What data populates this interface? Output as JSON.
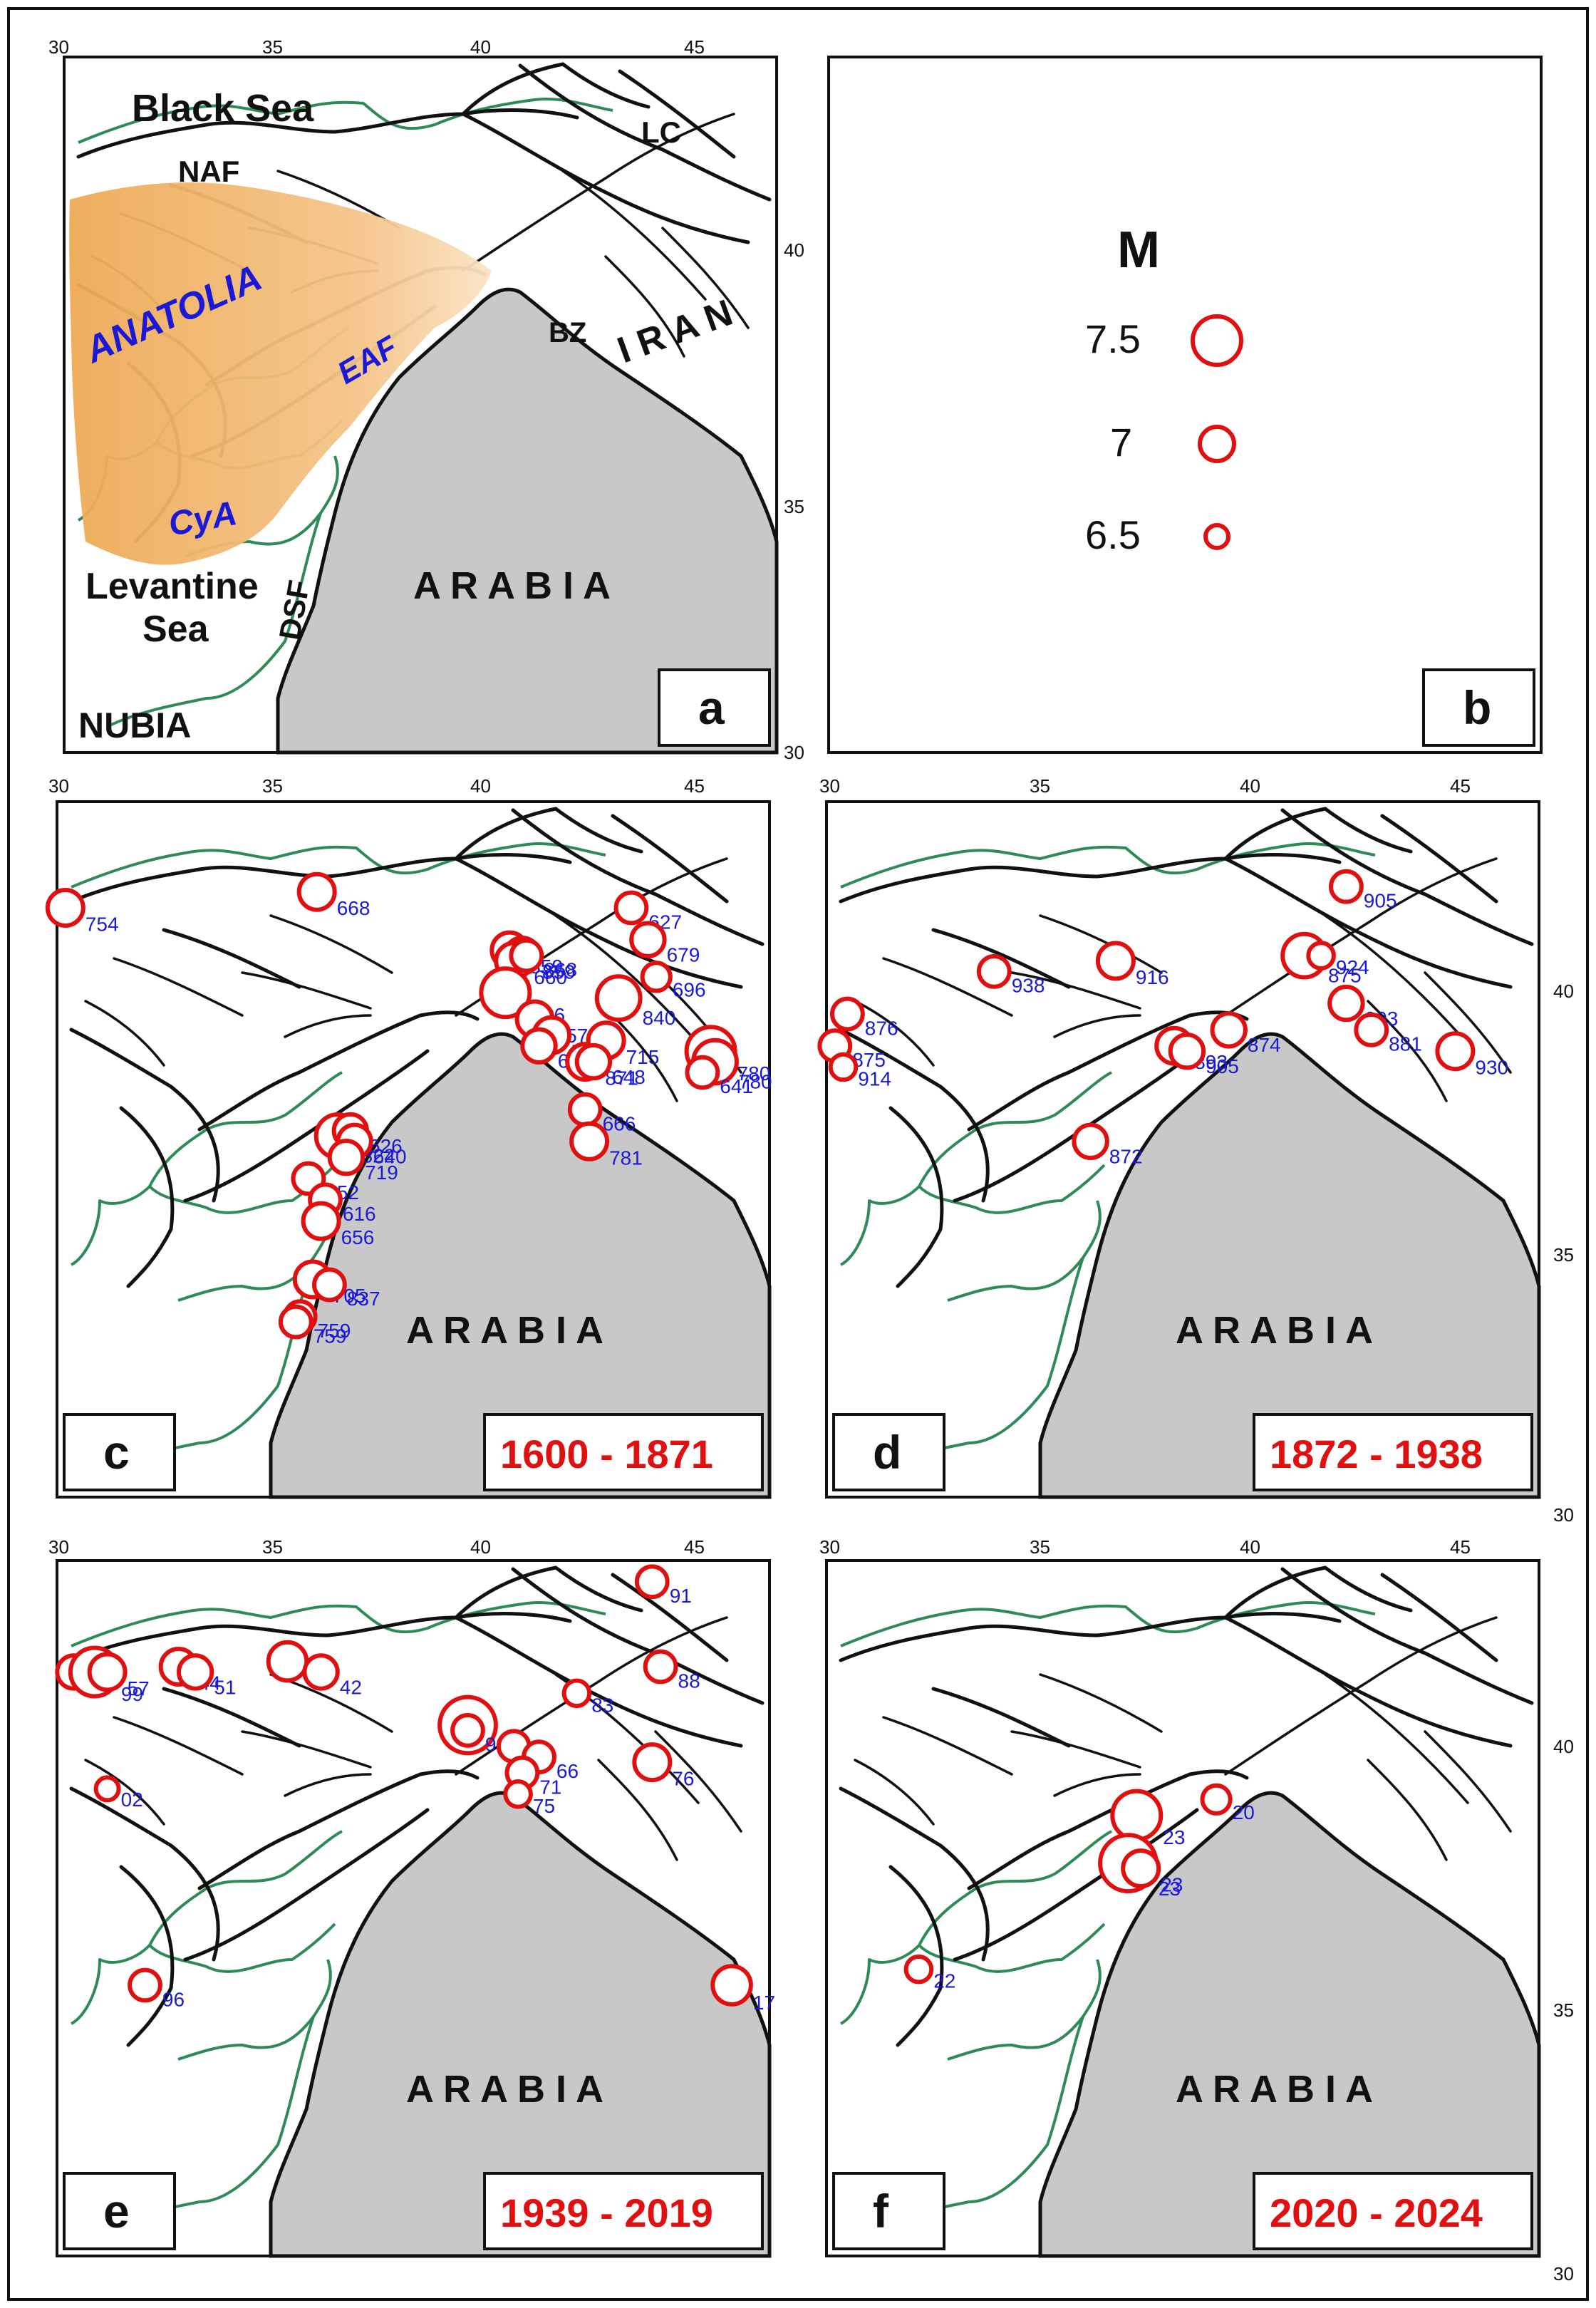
{
  "lon_ticks": [
    "30",
    "35",
    "40",
    "45"
  ],
  "lat_ticks": [
    "40",
    "35",
    "30"
  ],
  "panel_a": {
    "letter": "a",
    "labels": {
      "black_sea": "Black Sea",
      "naf": "NAF",
      "lc": "LC",
      "anatolia": "ANATOLIA",
      "eaf": "EAF",
      "bz": "BZ",
      "iran": "I R A N",
      "cya": "CyA",
      "levantine_1": "Levantine",
      "levantine_2": "Sea",
      "dsf": "DSF",
      "arabia": "A R A B I A",
      "nubia": "NUBIA"
    }
  },
  "panel_b": {
    "letter": "b",
    "legend_title": "M",
    "entries": [
      {
        "magnitude": "7.5"
      },
      {
        "magnitude": "7"
      },
      {
        "magnitude": "6.5"
      }
    ]
  },
  "arabia_label": "A R A B I A",
  "panels": [
    {
      "letter": "c",
      "period": "1600 - 1871",
      "earthquakes": [
        {
          "label": "754",
          "lon": 30.0,
          "lat": 40.9,
          "mag": 7.0
        },
        {
          "label": "668",
          "lon": 36.0,
          "lat": 41.2,
          "mag": 7.0
        },
        {
          "label": "859",
          "lon": 40.6,
          "lat": 40.1,
          "mag": 7.0
        },
        {
          "label": "859",
          "lon": 40.9,
          "lat": 40.0,
          "mag": 7.0
        },
        {
          "label": "660",
          "lon": 40.7,
          "lat": 39.9,
          "mag": 7.0
        },
        {
          "label": "868",
          "lon": 41.0,
          "lat": 40.0,
          "mag": 6.8
        },
        {
          "label": "866",
          "lon": 40.5,
          "lat": 39.3,
          "mag": 7.5
        },
        {
          "label": "857",
          "lon": 41.2,
          "lat": 38.8,
          "mag": 7.0
        },
        {
          "label": "705",
          "lon": 41.6,
          "lat": 38.5,
          "mag": 7.0
        },
        {
          "label": "696",
          "lon": 41.3,
          "lat": 38.3,
          "mag": 6.9
        },
        {
          "label": "871",
          "lon": 42.4,
          "lat": 38.0,
          "mag": 7.0
        },
        {
          "label": "715",
          "lon": 42.9,
          "lat": 38.4,
          "mag": 7.0
        },
        {
          "label": "840",
          "lon": 43.2,
          "lat": 39.2,
          "mag": 7.3
        },
        {
          "label": "627",
          "lon": 43.5,
          "lat": 40.9,
          "mag": 6.8
        },
        {
          "label": "679",
          "lon": 43.9,
          "lat": 40.3,
          "mag": 6.9
        },
        {
          "label": "696",
          "lon": 44.1,
          "lat": 39.6,
          "mag": 6.7
        },
        {
          "label": "648",
          "lon": 42.6,
          "lat": 38.0,
          "mag": 6.9
        },
        {
          "label": "780",
          "lon": 45.4,
          "lat": 38.2,
          "mag": 7.5
        },
        {
          "label": "780",
          "lon": 45.5,
          "lat": 38.0,
          "mag": 7.3
        },
        {
          "label": "641",
          "lon": 45.2,
          "lat": 37.8,
          "mag": 6.8
        },
        {
          "label": "666",
          "lon": 42.4,
          "lat": 37.1,
          "mag": 6.8
        },
        {
          "label": "781",
          "lon": 42.5,
          "lat": 36.5,
          "mag": 7.0
        },
        {
          "label": "822",
          "lon": 36.5,
          "lat": 36.6,
          "mag": 7.3
        },
        {
          "label": "626",
          "lon": 36.8,
          "lat": 36.7,
          "mag": 6.9
        },
        {
          "label": "640",
          "lon": 36.9,
          "lat": 36.5,
          "mag": 6.9
        },
        {
          "label": "719",
          "lon": 36.7,
          "lat": 36.2,
          "mag": 6.9
        },
        {
          "label": "752",
          "lon": 35.8,
          "lat": 35.8,
          "mag": 6.8
        },
        {
          "label": "616",
          "lon": 36.2,
          "lat": 35.4,
          "mag": 6.8
        },
        {
          "label": "656",
          "lon": 36.1,
          "lat": 35.0,
          "mag": 7.0
        },
        {
          "label": "705",
          "lon": 35.9,
          "lat": 33.9,
          "mag": 7.0
        },
        {
          "label": "837",
          "lon": 36.3,
          "lat": 33.8,
          "mag": 6.8
        },
        {
          "label": "759",
          "lon": 35.6,
          "lat": 33.2,
          "mag": 6.8
        },
        {
          "label": "759",
          "lon": 35.5,
          "lat": 33.1,
          "mag": 6.8
        }
      ]
    },
    {
      "letter": "d",
      "period": "1872 - 1938",
      "earthquakes": [
        {
          "label": "876",
          "lon": 30.3,
          "lat": 38.9,
          "mag": 6.8
        },
        {
          "label": "875",
          "lon": 30.0,
          "lat": 38.3,
          "mag": 6.8
        },
        {
          "label": "914",
          "lon": 30.2,
          "lat": 37.9,
          "mag": 6.6
        },
        {
          "label": "938",
          "lon": 33.8,
          "lat": 39.7,
          "mag": 6.8
        },
        {
          "label": "916",
          "lon": 36.7,
          "lat": 39.9,
          "mag": 7.0
        },
        {
          "label": "872",
          "lon": 36.1,
          "lat": 36.5,
          "mag": 6.9
        },
        {
          "label": "893",
          "lon": 38.1,
          "lat": 38.3,
          "mag": 7.0
        },
        {
          "label": "905",
          "lon": 38.4,
          "lat": 38.2,
          "mag": 6.9
        },
        {
          "label": "874",
          "lon": 39.4,
          "lat": 38.6,
          "mag": 6.9
        },
        {
          "label": "875",
          "lon": 41.2,
          "lat": 40.0,
          "mag": 7.3
        },
        {
          "label": "924",
          "lon": 41.6,
          "lat": 40.0,
          "mag": 6.6
        },
        {
          "label": "905",
          "lon": 42.2,
          "lat": 41.3,
          "mag": 6.8
        },
        {
          "label": "903",
          "lon": 42.2,
          "lat": 39.1,
          "mag": 6.9
        },
        {
          "label": "881",
          "lon": 42.8,
          "lat": 38.6,
          "mag": 6.8
        },
        {
          "label": "930",
          "lon": 44.8,
          "lat": 38.2,
          "mag": 7.0
        }
      ]
    },
    {
      "letter": "e",
      "period": "1939 - 2019",
      "earthquakes": [
        {
          "label": "67",
          "lon": 30.2,
          "lat": 40.8,
          "mag": 6.9
        },
        {
          "label": "99",
          "lon": 30.7,
          "lat": 40.8,
          "mag": 7.5
        },
        {
          "label": "57",
          "lon": 31.0,
          "lat": 40.8,
          "mag": 7.0
        },
        {
          "label": "44",
          "lon": 32.7,
          "lat": 40.9,
          "mag": 7.0
        },
        {
          "label": "51",
          "lon": 33.1,
          "lat": 40.8,
          "mag": 6.9
        },
        {
          "label": "43",
          "lon": 35.3,
          "lat": 41.0,
          "mag": 7.1
        },
        {
          "label": "42",
          "lon": 36.1,
          "lat": 40.8,
          "mag": 6.9
        },
        {
          "label": "02",
          "lon": 31.0,
          "lat": 38.6,
          "mag": 6.5
        },
        {
          "label": "96",
          "lon": 31.9,
          "lat": 34.9,
          "mag": 6.8
        },
        {
          "label": "39",
          "lon": 39.6,
          "lat": 39.8,
          "mag": 7.8
        },
        {
          "label": "92",
          "lon": 39.6,
          "lat": 39.7,
          "mag": 6.8
        },
        {
          "label": "49",
          "lon": 40.7,
          "lat": 39.4,
          "mag": 6.8
        },
        {
          "label": "66",
          "lon": 41.3,
          "lat": 39.2,
          "mag": 6.8
        },
        {
          "label": "71",
          "lon": 40.9,
          "lat": 38.9,
          "mag": 6.8
        },
        {
          "label": "75",
          "lon": 40.8,
          "lat": 38.5,
          "mag": 6.6
        },
        {
          "label": "83",
          "lon": 42.2,
          "lat": 40.4,
          "mag": 6.6
        },
        {
          "label": "88",
          "lon": 44.2,
          "lat": 40.9,
          "mag": 6.8
        },
        {
          "label": "91",
          "lon": 44.0,
          "lat": 42.5,
          "mag": 6.8
        },
        {
          "label": "76",
          "lon": 44.0,
          "lat": 39.1,
          "mag": 7.0
        },
        {
          "label": "17",
          "lon": 45.9,
          "lat": 34.9,
          "mag": 7.1
        }
      ]
    },
    {
      "letter": "f",
      "period": "2020 - 2024",
      "earthquakes": [
        {
          "label": "23",
          "lon": 37.2,
          "lat": 38.1,
          "mag": 7.5
        },
        {
          "label": "23",
          "lon": 37.0,
          "lat": 37.2,
          "mag": 7.8
        },
        {
          "label": "23",
          "lon": 37.3,
          "lat": 37.1,
          "mag": 7.0
        },
        {
          "label": "20",
          "lon": 39.1,
          "lat": 38.4,
          "mag": 6.7
        },
        {
          "label": "22",
          "lon": 32.0,
          "lat": 35.2,
          "mag": 6.6
        }
      ]
    }
  ]
}
